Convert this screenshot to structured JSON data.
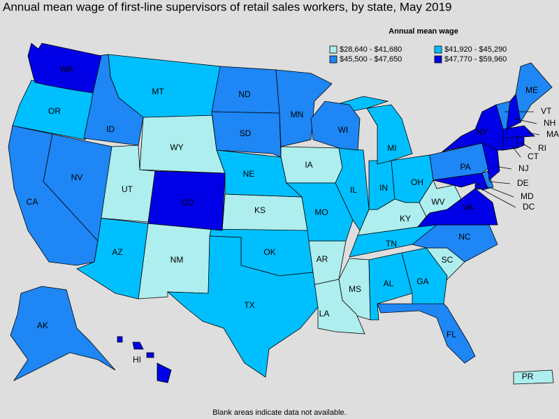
{
  "title": "Annual mean wage of first-line supervisors of retail sales workers, by state, May 2019",
  "legend": {
    "title": "Annual mean wage",
    "bins": [
      {
        "label": "$28,640 - $41,680",
        "color": "#aeeeee",
        "states": [
          "UT",
          "WY",
          "IA",
          "KS",
          "NM",
          "AR",
          "MS",
          "LA",
          "KY",
          "WV",
          "SC",
          "PR"
        ]
      },
      {
        "label": "$41,920 - $45,290",
        "color": "#00bfff",
        "states": [
          "OR",
          "MT",
          "NE",
          "MO",
          "IL",
          "IN",
          "OH",
          "MI",
          "AZ",
          "OK",
          "TX",
          "TN",
          "AL",
          "GA"
        ]
      },
      {
        "label": "$45,500 - $47,650",
        "color": "#1e86f5",
        "states": [
          "ID",
          "NV",
          "CA",
          "ND",
          "SD",
          "MN",
          "WI",
          "PA",
          "NC",
          "FL",
          "AK",
          "ME",
          "VT",
          "DE"
        ]
      },
      {
        "label": "$47,770 - $59,960",
        "color": "#0000e6",
        "states": [
          "WA",
          "CO",
          "NY",
          "NJ",
          "VA",
          "MD",
          "DC",
          "HI",
          "MA",
          "CT",
          "RI",
          "NH"
        ]
      }
    ]
  },
  "footnote": "Blank areas indicate data not available."
}
